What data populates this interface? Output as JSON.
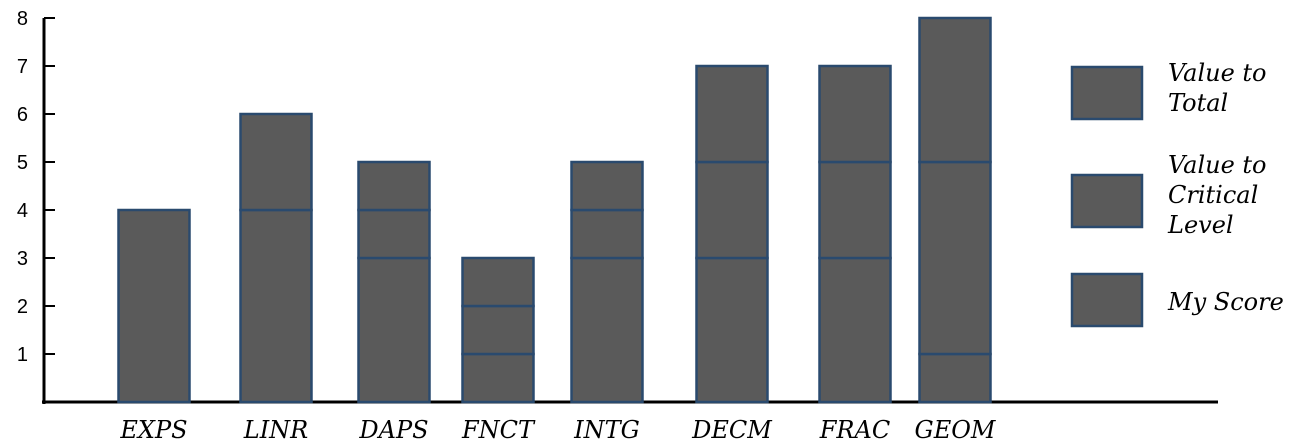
{
  "chart_data": {
    "type": "bar",
    "stacked": true,
    "categories": [
      "EXPS",
      "LINR",
      "DAPS",
      "FNCT",
      "INTG",
      "DECM",
      "FRAC",
      "GEOM"
    ],
    "series": [
      {
        "name": "My Score",
        "values": [
          4,
          4,
          3,
          1,
          3,
          3,
          3,
          1
        ]
      },
      {
        "name": "Value to Critical Level",
        "values": [
          0,
          0,
          1,
          1,
          1,
          2,
          2,
          4
        ]
      },
      {
        "name": "Value to Total",
        "values": [
          0,
          2,
          1,
          1,
          1,
          2,
          2,
          3
        ]
      }
    ],
    "legend_entries": [
      {
        "lines": [
          "Value to",
          "Total"
        ]
      },
      {
        "lines": [
          "Value to",
          "Critical",
          "Level"
        ]
      },
      {
        "lines": [
          "My Score"
        ]
      }
    ],
    "yticks": [
      1,
      2,
      3,
      4,
      5,
      6,
      7,
      8
    ],
    "ylim": [
      0,
      8
    ],
    "title": "",
    "xlabel": "",
    "ylabel": "",
    "legend_position": "right",
    "colors": {
      "bar_fill": "#5a5a5a",
      "bar_stroke": "#2a4a6e",
      "axis": "#000000"
    }
  }
}
